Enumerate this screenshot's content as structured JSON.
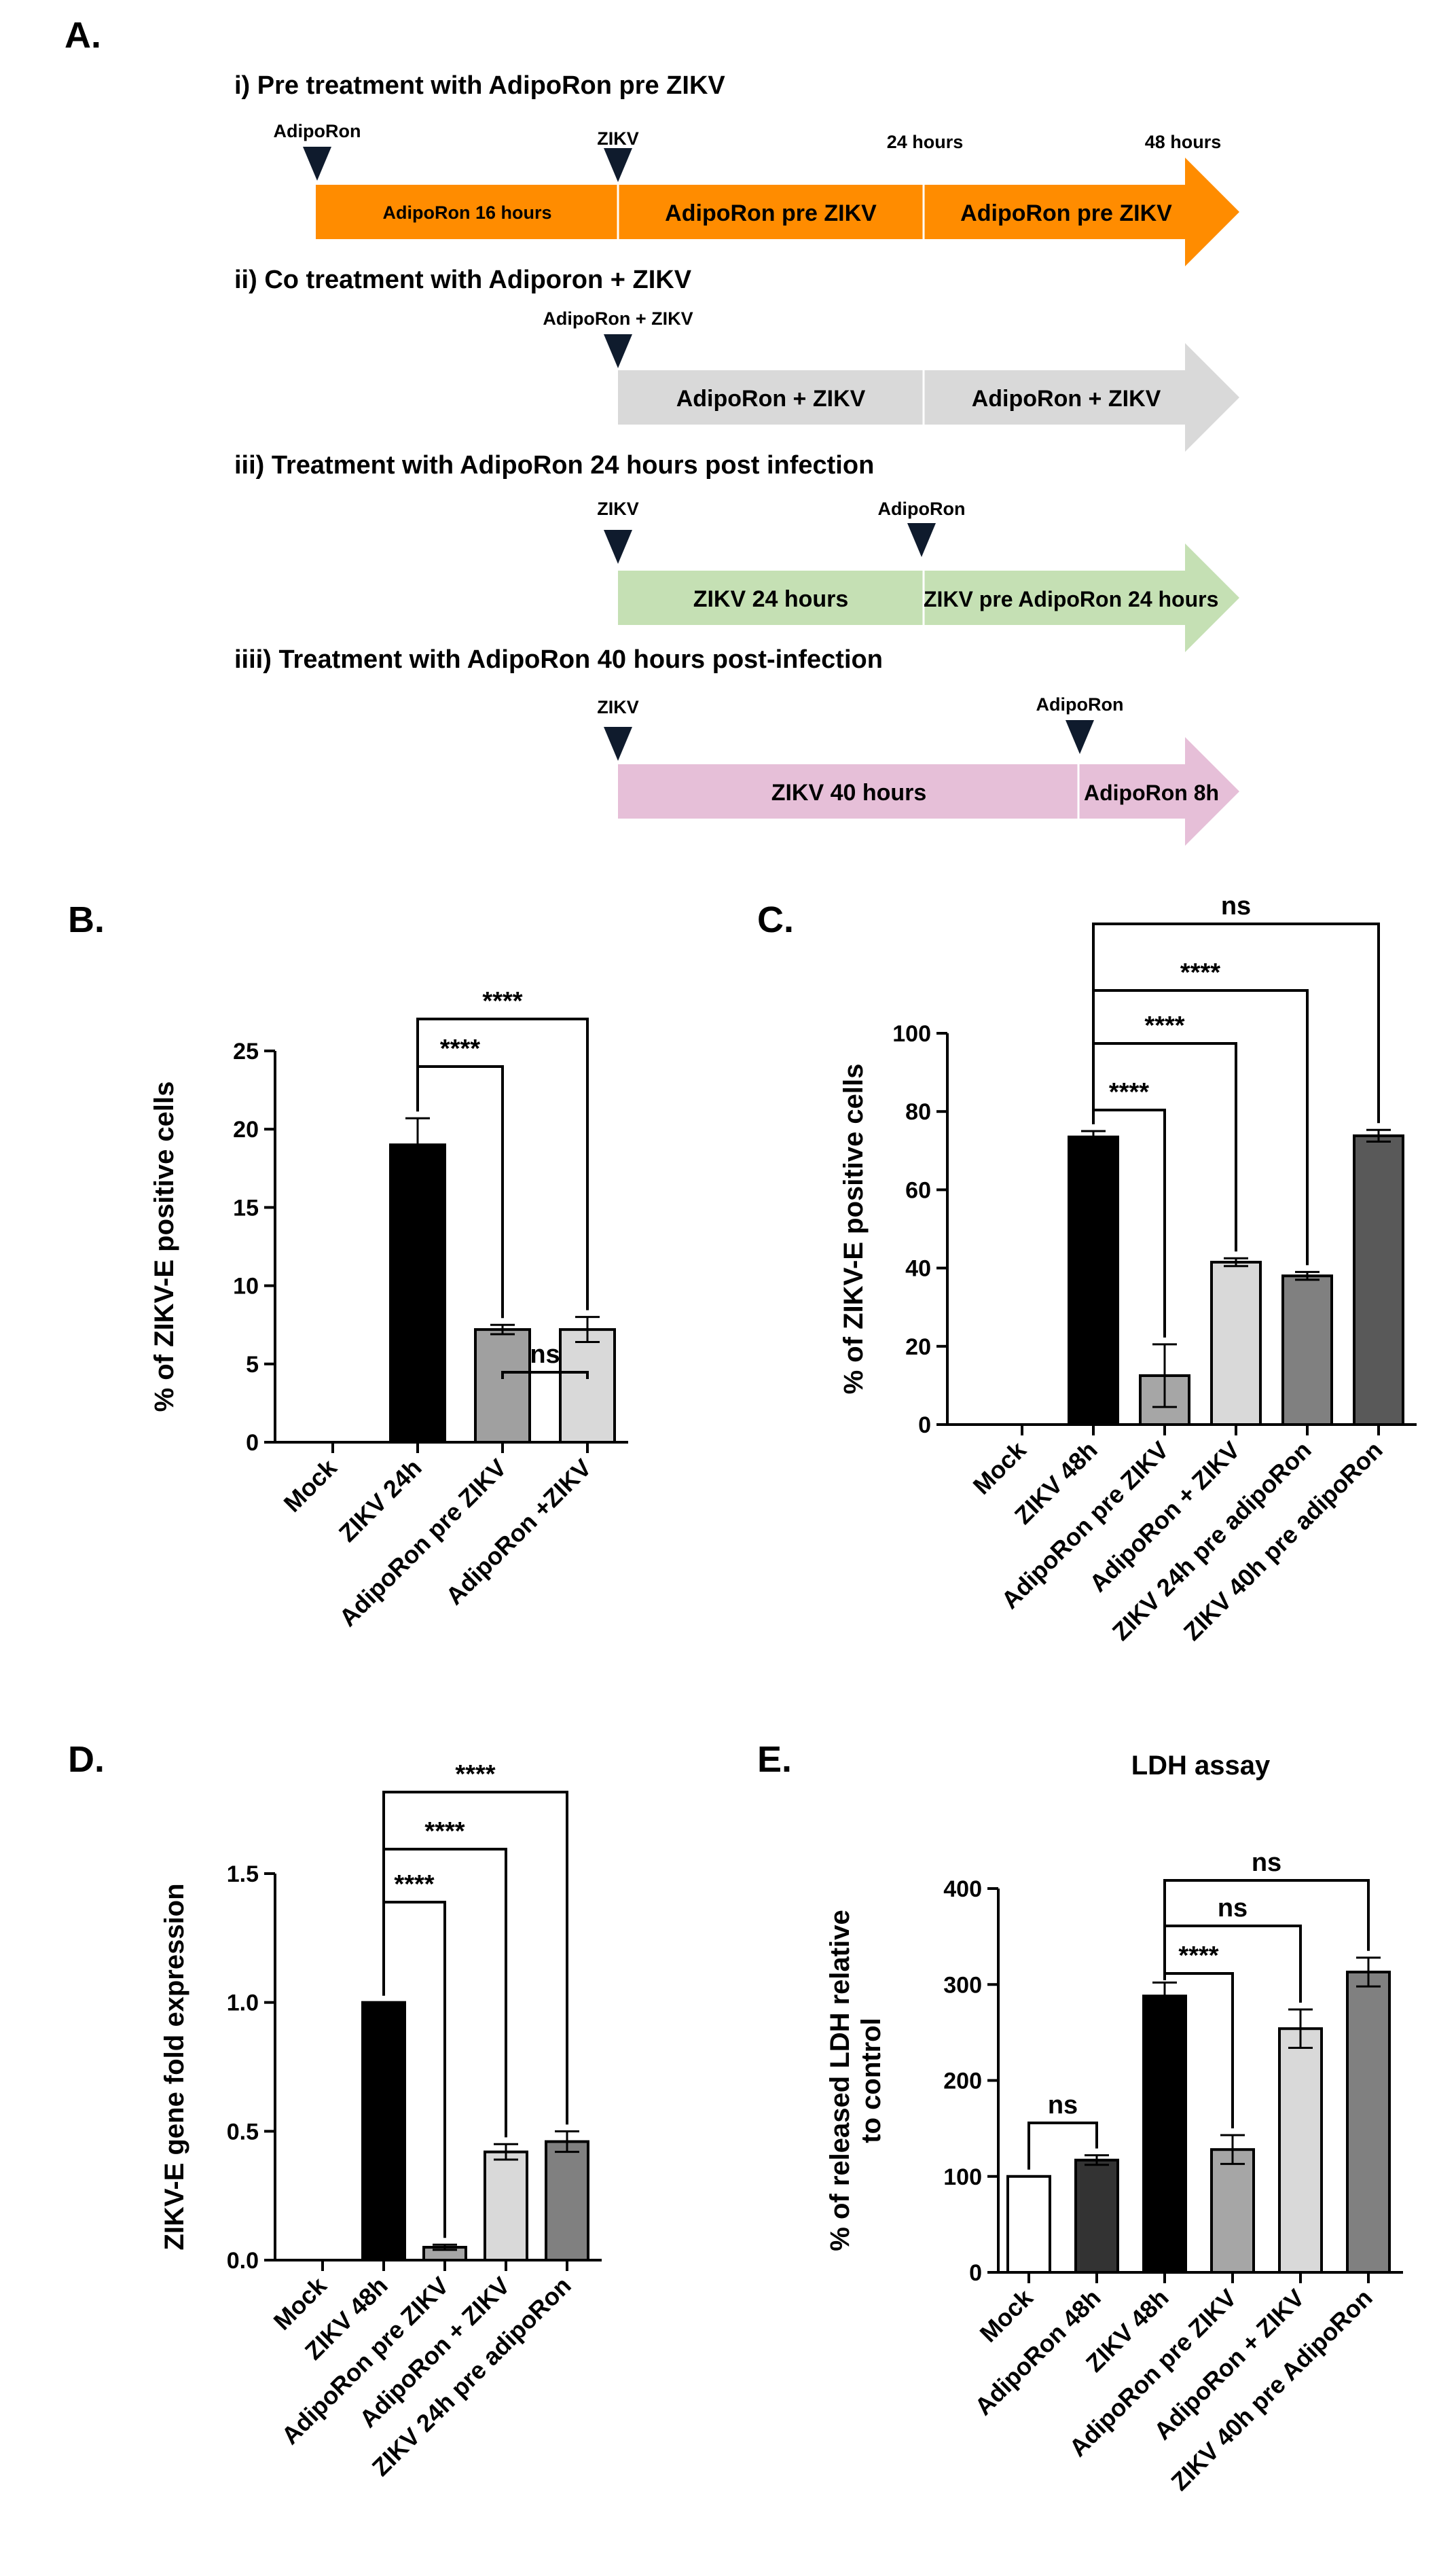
{
  "figure": {
    "panel_labels": [
      "A.",
      "B.",
      "C.",
      "D.",
      "E."
    ]
  },
  "timeline": {
    "rows": [
      {
        "title": "i) Pre treatment with AdipoRon  pre ZIKV",
        "markers": [
          "AdipoRon",
          "ZIKV"
        ],
        "time_labels": [
          "24 hours",
          "48 hours"
        ],
        "segments": [
          "AdipoRon 16 hours",
          "AdipoRon pre ZIKV",
          "AdipoRon pre ZIKV"
        ],
        "color": "#ff8c00"
      },
      {
        "title": "ii) Co treatment with Adiporon  + ZIKV",
        "markers": [
          "AdipoRon + ZIKV"
        ],
        "segments": [
          "AdipoRon + ZIKV",
          "AdipoRon + ZIKV"
        ],
        "color": "#d9d9d9"
      },
      {
        "title": "iii) Treatment with AdipoRon  24 hours post infection",
        "markers": [
          "ZIKV",
          "AdipoRon"
        ],
        "segments": [
          "ZIKV 24 hours",
          "ZIKV pre AdipoRon 24 hours"
        ],
        "color": "#c5e0b4"
      },
      {
        "title": "iiii) Treatment with AdipoRon  40 hours post-infection",
        "markers": [
          "ZIKV",
          "AdipoRon"
        ],
        "segments": [
          "ZIKV 40 hours",
          "AdipoRon 8h"
        ],
        "color": "#e6bfd8"
      }
    ]
  },
  "chart_data": [
    {
      "panel": "B.",
      "type": "bar",
      "ylabel": "% of ZIKV-E positive cells",
      "categories": [
        "Mock",
        "ZIKV 24h",
        "AdipoRon pre ZIKV",
        "AdipoRon +ZIKV"
      ],
      "values": [
        0,
        19.0,
        7.2,
        7.2
      ],
      "errors": [
        0,
        1.7,
        0.3,
        0.8
      ],
      "bar_colors": [
        "#ffffff",
        "#000000",
        "#a0a0a0",
        "#d9d9d9"
      ],
      "ylim": [
        0,
        25
      ],
      "yticks": [
        0,
        5,
        10,
        15,
        20,
        25
      ],
      "comparisons": [
        {
          "from": 1,
          "to": 2,
          "label": "****"
        },
        {
          "from": 1,
          "to": 3,
          "label": "****"
        },
        {
          "from": 2,
          "to": 3,
          "label": "ns"
        }
      ]
    },
    {
      "panel": "C.",
      "type": "bar",
      "ylabel": "% of ZIKV-E positive cells",
      "categories": [
        "Mock",
        "ZIKV 48h",
        "AdipoRon pre ZIKV",
        "AdipoRon + ZIKV",
        "ZIKV 24h pre adipoRon",
        "ZIKV 40h pre adipoRon"
      ],
      "values": [
        0,
        73.5,
        12.5,
        41.5,
        38.0,
        73.8
      ],
      "errors": [
        0,
        1.5,
        8.0,
        1.0,
        1.0,
        1.5
      ],
      "bar_colors": [
        "#ffffff",
        "#000000",
        "#a6a6a6",
        "#d9d9d9",
        "#808080",
        "#595959"
      ],
      "ylim": [
        0,
        100
      ],
      "yticks": [
        0,
        20,
        40,
        60,
        80,
        100
      ],
      "comparisons": [
        {
          "from": 1,
          "to": 2,
          "label": "****"
        },
        {
          "from": 1,
          "to": 3,
          "label": "****"
        },
        {
          "from": 1,
          "to": 4,
          "label": "****"
        },
        {
          "from": 1,
          "to": 5,
          "label": "ns"
        }
      ]
    },
    {
      "panel": "D.",
      "type": "bar",
      "ylabel": "ZIKV-E gene fold expression",
      "categories": [
        "Mock",
        "ZIKV 48h",
        "AdipoRon pre ZIKV",
        "AdipoRon + ZIKV",
        "ZIKV 24h pre adipoRon"
      ],
      "values": [
        0,
        1.0,
        0.05,
        0.42,
        0.46
      ],
      "errors": [
        0,
        0,
        0.01,
        0.03,
        0.04
      ],
      "bar_colors": [
        "#ffffff",
        "#000000",
        "#a6a6a6",
        "#d9d9d9",
        "#808080"
      ],
      "ylim": [
        0,
        1.5
      ],
      "yticks": [
        0,
        0.5,
        1.0,
        1.5
      ],
      "ytick_labels": [
        "0.0",
        "0.5",
        "1.0",
        "1.5"
      ],
      "comparisons": [
        {
          "from": 1,
          "to": 2,
          "label": "****"
        },
        {
          "from": 1,
          "to": 3,
          "label": "****"
        },
        {
          "from": 1,
          "to": 4,
          "label": "****"
        }
      ]
    },
    {
      "panel": "E.",
      "type": "bar",
      "title": "LDH assay",
      "ylabel": "% of released LDH relative to control",
      "ylabel_lines": [
        "% of released LDH relative",
        "to control"
      ],
      "categories": [
        "Mock",
        "AdipoRon 48h",
        "ZIKV 48h",
        "AdipoRon pre ZIKV",
        "AdipoRon + ZIKV",
        "ZIKV 40h pre AdipoRon"
      ],
      "values": [
        100,
        117,
        288,
        128,
        254,
        313
      ],
      "errors": [
        0,
        5,
        14,
        15,
        20,
        15
      ],
      "bar_colors": [
        "#ffffff",
        "#333333",
        "#000000",
        "#a6a6a6",
        "#d9d9d9",
        "#808080"
      ],
      "ylim": [
        0,
        400
      ],
      "yticks": [
        0,
        100,
        200,
        300,
        400
      ],
      "comparisons": [
        {
          "from": 0,
          "to": 1,
          "label": "ns"
        },
        {
          "from": 2,
          "to": 3,
          "label": "****"
        },
        {
          "from": 2,
          "to": 4,
          "label": "ns"
        },
        {
          "from": 2,
          "to": 5,
          "label": "ns"
        }
      ]
    }
  ]
}
